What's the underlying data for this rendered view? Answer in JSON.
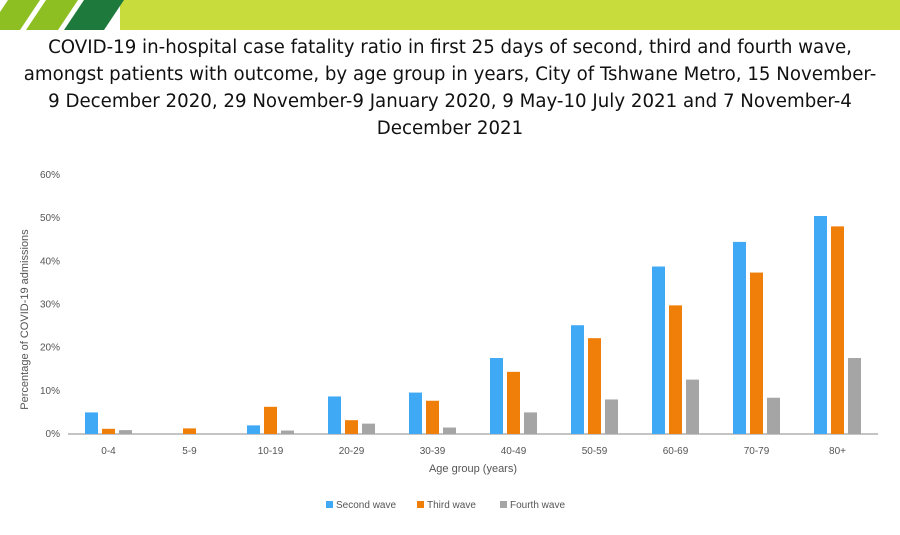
{
  "banner": {
    "colors": [
      "#8DBE22",
      "#1E7A3C",
      "#C8DC3C"
    ]
  },
  "chart_data": {
    "type": "bar",
    "title": "COVID-19 in-hospital case fatality ratio in first 25 days of second, third and fourth wave, amongst patients with outcome, by age group in years, City of Tshwane Metro, 15 November-9 December 2020, 29 November-9 January 2020, 9 May-10 July 2021 and 7 November-4 December 2021",
    "xlabel": "Age group (years)",
    "ylabel": "Percentage of COVID-19 admissions",
    "ylim": [
      0,
      60
    ],
    "yticks": [
      0,
      10,
      20,
      30,
      40,
      50,
      60
    ],
    "ytick_suffix": "%",
    "grid": false,
    "legend_position": "bottom",
    "categories": [
      "0-4",
      "5-9",
      "10-19",
      "20-29",
      "30-39",
      "40-49",
      "50-59",
      "60-69",
      "70-79",
      "80+"
    ],
    "series": [
      {
        "name": "Second wave",
        "color": "#3FA9F5",
        "values": [
          5,
          0,
          2,
          8.7,
          9.6,
          17.6,
          25.2,
          38.8,
          44.5,
          50.5
        ]
      },
      {
        "name": "Third wave",
        "color": "#F07F09",
        "values": [
          1.2,
          1.3,
          6.3,
          3.2,
          7.7,
          14.4,
          22.2,
          29.8,
          37.4,
          48.1
        ]
      },
      {
        "name": "Fourth wave",
        "color": "#A5A5A5",
        "values": [
          0.9,
          0,
          0.8,
          2.4,
          1.5,
          5,
          8,
          12.6,
          8.4,
          17.6
        ]
      }
    ]
  }
}
